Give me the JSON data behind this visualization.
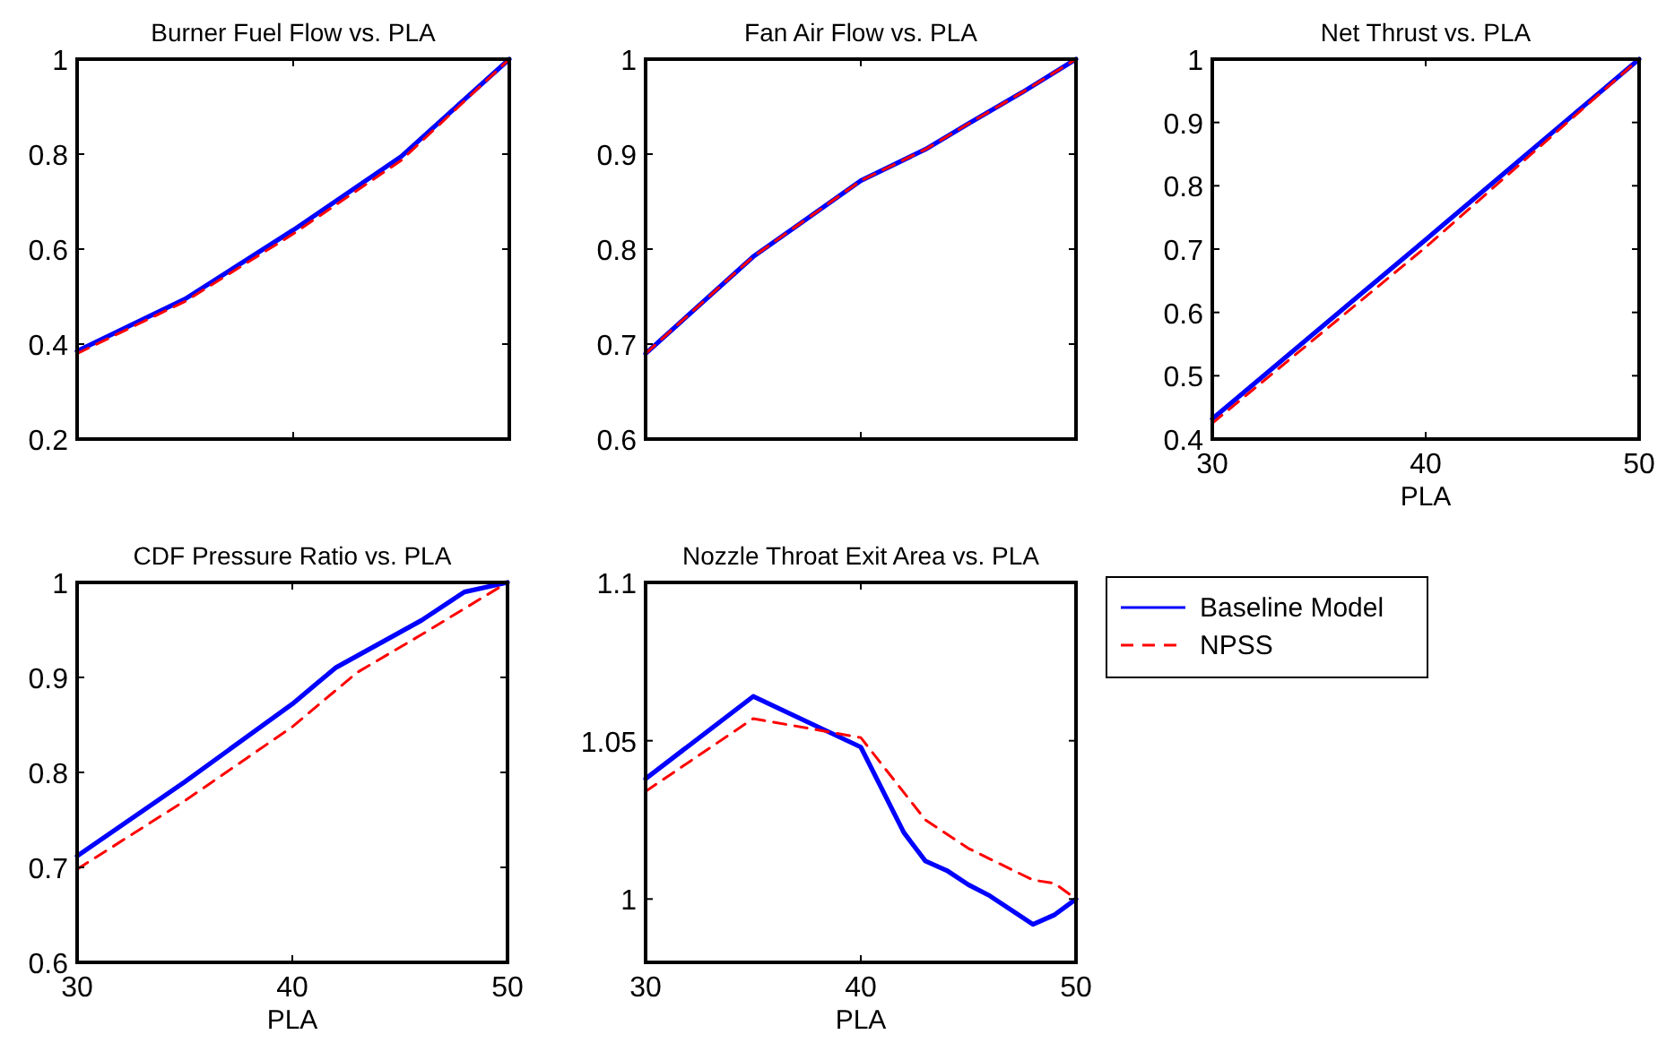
{
  "chart_data": [
    {
      "type": "line",
      "title": "Burner Fuel Flow vs. PLA",
      "xlim": [
        30,
        50
      ],
      "xticks": [
        30,
        40,
        50
      ],
      "ylim": [
        0.2,
        1
      ],
      "yticks": [
        0.2,
        0.4,
        0.6,
        0.8,
        1
      ],
      "tick_labels": "y",
      "grid": false,
      "legend": false,
      "series": [
        {
          "color": "#0000ff",
          "line_style": "solid",
          "x": [
            30,
            35,
            40,
            45,
            50
          ],
          "values": [
            0.385,
            0.495,
            0.64,
            0.795,
            1
          ]
        },
        {
          "color": "#ff0000",
          "line_style": "dashed",
          "x": [
            30,
            35,
            40,
            45,
            50
          ],
          "values": [
            0.38,
            0.49,
            0.632,
            0.787,
            1
          ]
        }
      ]
    },
    {
      "type": "line",
      "title": "Fan Air Flow vs. PLA",
      "xlim": [
        30,
        50
      ],
      "xticks": [
        30,
        40,
        50
      ],
      "ylim": [
        0.6,
        1
      ],
      "yticks": [
        0.6,
        0.7,
        0.8,
        0.9,
        1
      ],
      "tick_labels": "y",
      "grid": false,
      "legend": false,
      "series": [
        {
          "color": "#0000ff",
          "line_style": "solid",
          "x": [
            30,
            35,
            40,
            43,
            45,
            47.5,
            50
          ],
          "values": [
            0.69,
            0.792,
            0.872,
            0.905,
            0.932,
            0.965,
            1
          ]
        },
        {
          "color": "#ff0000",
          "line_style": "dashed",
          "x": [
            30,
            35,
            40,
            43,
            45,
            47.5,
            50
          ],
          "values": [
            0.69,
            0.792,
            0.872,
            0.905,
            0.932,
            0.965,
            1
          ]
        }
      ]
    },
    {
      "type": "line",
      "title": "Net Thrust vs. PLA",
      "xlabel": "PLA",
      "xlim": [
        30,
        50
      ],
      "xticks": [
        30,
        40,
        50
      ],
      "ylim": [
        0.4,
        1
      ],
      "yticks": [
        0.4,
        0.5,
        0.6,
        0.7,
        0.8,
        0.9,
        1
      ],
      "grid": false,
      "legend": false,
      "series": [
        {
          "color": "#0000ff",
          "line_style": "solid",
          "x": [
            30,
            40,
            50
          ],
          "values": [
            0.432,
            0.715,
            1
          ]
        },
        {
          "color": "#ff0000",
          "line_style": "dashed",
          "x": [
            30,
            40,
            50
          ],
          "values": [
            0.425,
            0.703,
            1
          ]
        }
      ]
    },
    {
      "type": "line",
      "title": "CDF Pressure Ratio vs. PLA",
      "xlabel": "PLA",
      "xlim": [
        30,
        50
      ],
      "xticks": [
        30,
        40,
        50
      ],
      "ylim": [
        0.6,
        1
      ],
      "yticks": [
        0.6,
        0.7,
        0.8,
        0.9,
        1
      ],
      "grid": false,
      "legend": false,
      "series": [
        {
          "color": "#0000ff",
          "line_style": "solid",
          "x": [
            30,
            35,
            40,
            42,
            46,
            48,
            50
          ],
          "values": [
            0.712,
            0.79,
            0.872,
            0.91,
            0.96,
            0.99,
            1
          ]
        },
        {
          "color": "#ff0000",
          "line_style": "dashed",
          "x": [
            30,
            35,
            40,
            43,
            46,
            50
          ],
          "values": [
            0.698,
            0.77,
            0.848,
            0.905,
            0.945,
            1
          ]
        }
      ]
    },
    {
      "type": "line",
      "title": "Nozzle Throat Exit Area vs. PLA",
      "xlabel": "PLA",
      "xlim": [
        30,
        50
      ],
      "xticks": [
        30,
        40,
        50
      ],
      "ylim": [
        0.98,
        1.1
      ],
      "yticks": [
        1,
        1.05,
        1.1
      ],
      "grid": false,
      "legend": "right",
      "series": [
        {
          "name": "Baseline Model",
          "color": "#0000ff",
          "line_style": "solid",
          "x": [
            30,
            35,
            40,
            42,
            43,
            44,
            45,
            46,
            48,
            49,
            50
          ],
          "values": [
            1.038,
            1.064,
            1.048,
            1.021,
            1.012,
            1.009,
            1.0045,
            1.001,
            0.992,
            0.995,
            1
          ]
        },
        {
          "name": "NPSS",
          "color": "#ff0000",
          "line_style": "dashed",
          "x": [
            30,
            35,
            40,
            43,
            45,
            48,
            49,
            50
          ],
          "values": [
            1.034,
            1.057,
            1.051,
            1.025,
            1.016,
            1.006,
            1.005,
            1
          ]
        }
      ]
    }
  ]
}
